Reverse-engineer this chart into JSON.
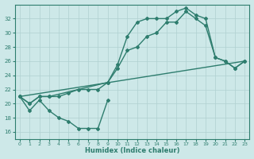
{
  "xlabel": "Humidex (Indice chaleur)",
  "background_color": "#cde8e8",
  "grid_color": "#b0d0d0",
  "line_color": "#2e7d6e",
  "ylim": [
    15,
    34
  ],
  "yticks": [
    16,
    18,
    20,
    22,
    24,
    26,
    28,
    30,
    32
  ],
  "xticks": [
    0,
    1,
    2,
    3,
    4,
    5,
    6,
    7,
    8,
    9,
    10,
    11,
    12,
    13,
    14,
    15,
    16,
    17,
    18,
    19,
    20,
    21,
    22,
    23
  ],
  "marker": "D",
  "markersize": 2.0,
  "linewidth": 1.0,
  "series_dip": {
    "x": [
      0,
      1,
      2,
      3,
      4,
      5,
      6,
      7,
      8,
      9
    ],
    "y": [
      21,
      19,
      20.5,
      19,
      18,
      17.5,
      16.5,
      16.5,
      16.5,
      20.5
    ]
  },
  "series_mid": {
    "x": [
      0,
      1,
      2,
      3,
      4,
      5,
      6,
      7,
      8,
      9,
      10,
      11,
      12,
      13,
      14,
      15,
      16,
      17,
      18,
      19,
      20,
      21,
      22,
      23
    ],
    "y": [
      21,
      20,
      21,
      21,
      21,
      21.5,
      22,
      22,
      22,
      23,
      25,
      27.5,
      28,
      29.5,
      30,
      31.5,
      31.5,
      33,
      32,
      31,
      26.5,
      26,
      25,
      26
    ]
  },
  "series_upper": {
    "x": [
      0,
      1,
      2,
      3,
      9,
      10,
      11,
      12,
      13,
      14,
      15,
      16,
      17,
      18,
      19,
      20,
      21,
      22,
      23
    ],
    "y": [
      21,
      20,
      21,
      21,
      23,
      25.5,
      29.5,
      31.5,
      32,
      32,
      32,
      33,
      33.5,
      32.5,
      32,
      26.5,
      26,
      25,
      26
    ]
  },
  "series_diag": {
    "x": [
      0,
      23
    ],
    "y": [
      21,
      26
    ]
  }
}
